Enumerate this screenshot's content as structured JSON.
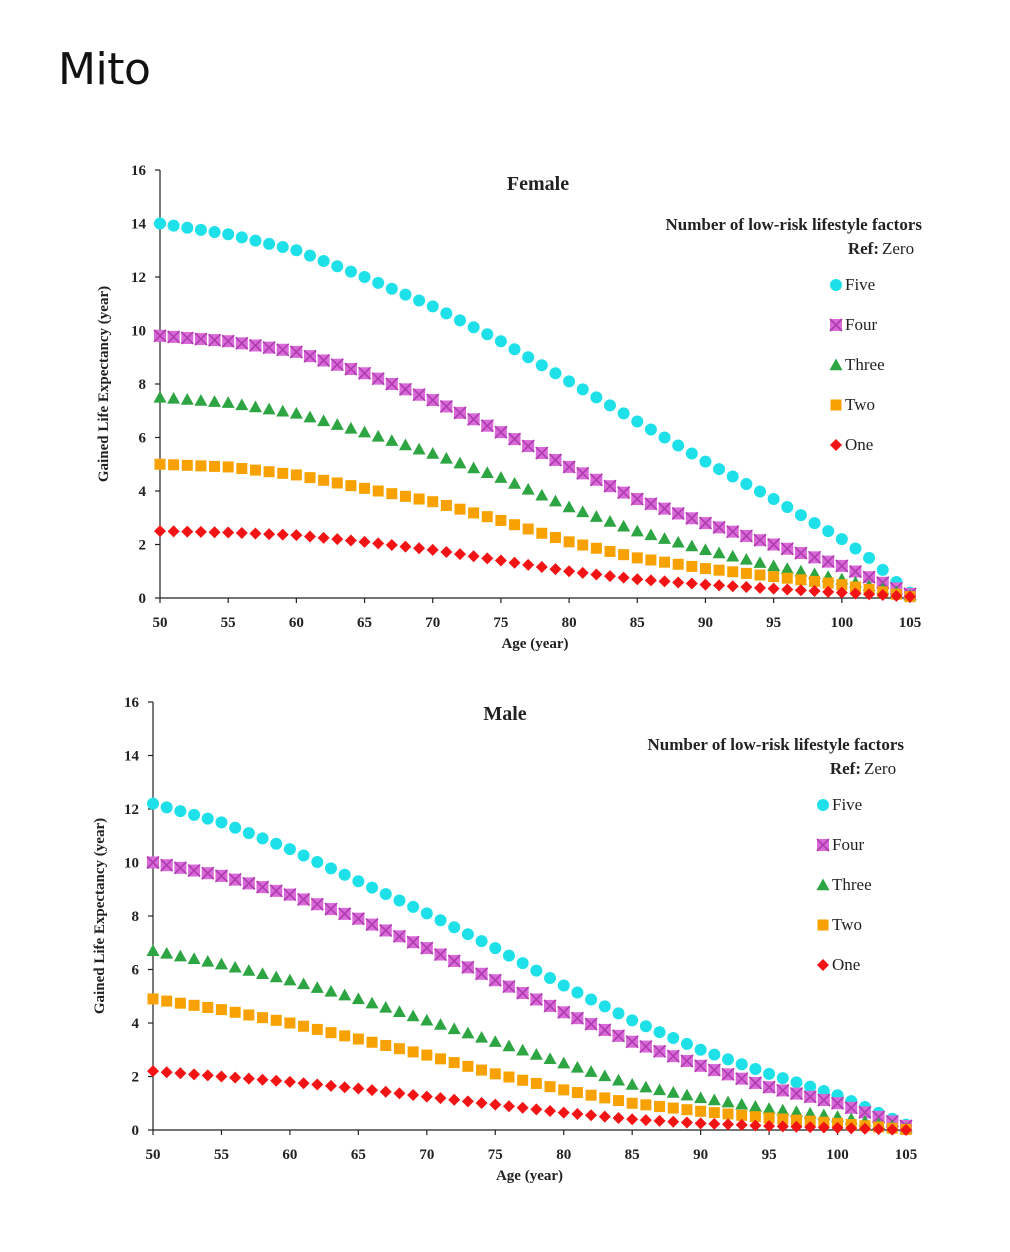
{
  "brand": "Mito",
  "colors": {
    "Five": "#1ee0e8",
    "Four": "#d86ad8",
    "Three": "#2ea543",
    "Two": "#f7a202",
    "One": "#f21414"
  },
  "chart_data": [
    {
      "type": "scatter",
      "title": "Female",
      "xlabel": "Age (year)",
      "ylabel": "Gained Life Expectancy (year)",
      "xlim": [
        50,
        105
      ],
      "ylim": [
        0,
        16
      ],
      "xticks": [
        50,
        55,
        60,
        65,
        70,
        75,
        80,
        85,
        90,
        95,
        100,
        105
      ],
      "yticks": [
        0,
        2,
        4,
        6,
        8,
        10,
        12,
        14,
        16
      ],
      "legend_title": "Number  of low-risk  lifestyle factors",
      "legend_ref_label": "Ref:",
      "legend_ref_value": "Zero",
      "legend_position": "top-right",
      "series": [
        {
          "name": "Five",
          "marker": "circle",
          "x": [
            50,
            55,
            60,
            65,
            70,
            75,
            80,
            85,
            90,
            95,
            100,
            102,
            104,
            105
          ],
          "y": [
            14.0,
            13.6,
            13.0,
            12.0,
            10.9,
            9.6,
            8.1,
            6.6,
            5.1,
            3.7,
            2.2,
            1.5,
            0.6,
            0.2
          ]
        },
        {
          "name": "Four",
          "marker": "square-x",
          "x": [
            50,
            55,
            60,
            65,
            70,
            75,
            80,
            85,
            90,
            95,
            100,
            105
          ],
          "y": [
            9.8,
            9.6,
            9.2,
            8.4,
            7.4,
            6.2,
            4.9,
            3.7,
            2.8,
            2.0,
            1.2,
            0.15
          ]
        },
        {
          "name": "Three",
          "marker": "triangle",
          "x": [
            50,
            55,
            60,
            65,
            70,
            75,
            80,
            85,
            90,
            95,
            100,
            105
          ],
          "y": [
            7.5,
            7.3,
            6.9,
            6.2,
            5.4,
            4.5,
            3.4,
            2.5,
            1.8,
            1.2,
            0.7,
            0.1
          ]
        },
        {
          "name": "Two",
          "marker": "square",
          "x": [
            50,
            55,
            60,
            65,
            70,
            75,
            80,
            85,
            90,
            95,
            100,
            105
          ],
          "y": [
            5.0,
            4.9,
            4.6,
            4.1,
            3.6,
            2.9,
            2.1,
            1.5,
            1.1,
            0.8,
            0.5,
            0.05
          ]
        },
        {
          "name": "One",
          "marker": "diamond",
          "x": [
            50,
            55,
            60,
            65,
            70,
            75,
            80,
            85,
            90,
            95,
            100,
            105
          ],
          "y": [
            2.5,
            2.45,
            2.35,
            2.1,
            1.8,
            1.4,
            1.0,
            0.7,
            0.5,
            0.35,
            0.2,
            0.05
          ]
        }
      ]
    },
    {
      "type": "scatter",
      "title": "Male",
      "xlabel": "Age (year)",
      "ylabel": "Gained Life Expectancy (year)",
      "xlim": [
        50,
        105
      ],
      "ylim": [
        0,
        16
      ],
      "xticks": [
        50,
        55,
        60,
        65,
        70,
        75,
        80,
        85,
        90,
        95,
        100,
        105
      ],
      "yticks": [
        0,
        2,
        4,
        6,
        8,
        10,
        12,
        14,
        16
      ],
      "legend_title": "Number  of low-risk  lifestyle factors",
      "legend_ref_label": "Ref:",
      "legend_ref_value": "Zero",
      "legend_position": "top-right",
      "series": [
        {
          "name": "Five",
          "marker": "circle",
          "x": [
            50,
            55,
            60,
            65,
            70,
            75,
            80,
            85,
            90,
            95,
            100,
            105
          ],
          "y": [
            12.2,
            11.5,
            10.5,
            9.3,
            8.1,
            6.8,
            5.4,
            4.1,
            3.0,
            2.1,
            1.3,
            0.2
          ]
        },
        {
          "name": "Four",
          "marker": "square-x",
          "x": [
            50,
            55,
            60,
            65,
            70,
            75,
            80,
            85,
            90,
            95,
            100,
            105
          ],
          "y": [
            10.0,
            9.5,
            8.8,
            7.9,
            6.8,
            5.6,
            4.4,
            3.3,
            2.4,
            1.6,
            1.0,
            0.15
          ]
        },
        {
          "name": "Three",
          "marker": "triangle",
          "x": [
            50,
            55,
            60,
            65,
            70,
            75,
            80,
            85,
            90,
            95,
            100,
            105
          ],
          "y": [
            6.7,
            6.2,
            5.6,
            4.9,
            4.1,
            3.3,
            2.5,
            1.7,
            1.2,
            0.8,
            0.5,
            0.05
          ]
        },
        {
          "name": "Two",
          "marker": "square",
          "x": [
            50,
            55,
            60,
            65,
            70,
            75,
            80,
            85,
            90,
            95,
            100,
            105
          ],
          "y": [
            4.9,
            4.5,
            4.0,
            3.4,
            2.8,
            2.1,
            1.5,
            1.0,
            0.7,
            0.45,
            0.25,
            0.02
          ]
        },
        {
          "name": "One",
          "marker": "diamond",
          "x": [
            50,
            55,
            60,
            65,
            70,
            75,
            80,
            85,
            90,
            95,
            100,
            105
          ],
          "y": [
            2.2,
            2.0,
            1.8,
            1.55,
            1.25,
            0.95,
            0.65,
            0.4,
            0.25,
            0.15,
            0.08,
            0.0
          ]
        }
      ]
    }
  ]
}
